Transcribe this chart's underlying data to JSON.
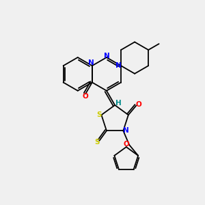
{
  "background_color": "#f0f0f0",
  "atom_colors": {
    "N": "#0000ff",
    "O": "#ff0000",
    "S": "#cccc00",
    "H": "#008b8b",
    "C": "#000000"
  },
  "figsize": [
    3.0,
    3.0
  ],
  "dpi": 100,
  "lw": 1.3
}
